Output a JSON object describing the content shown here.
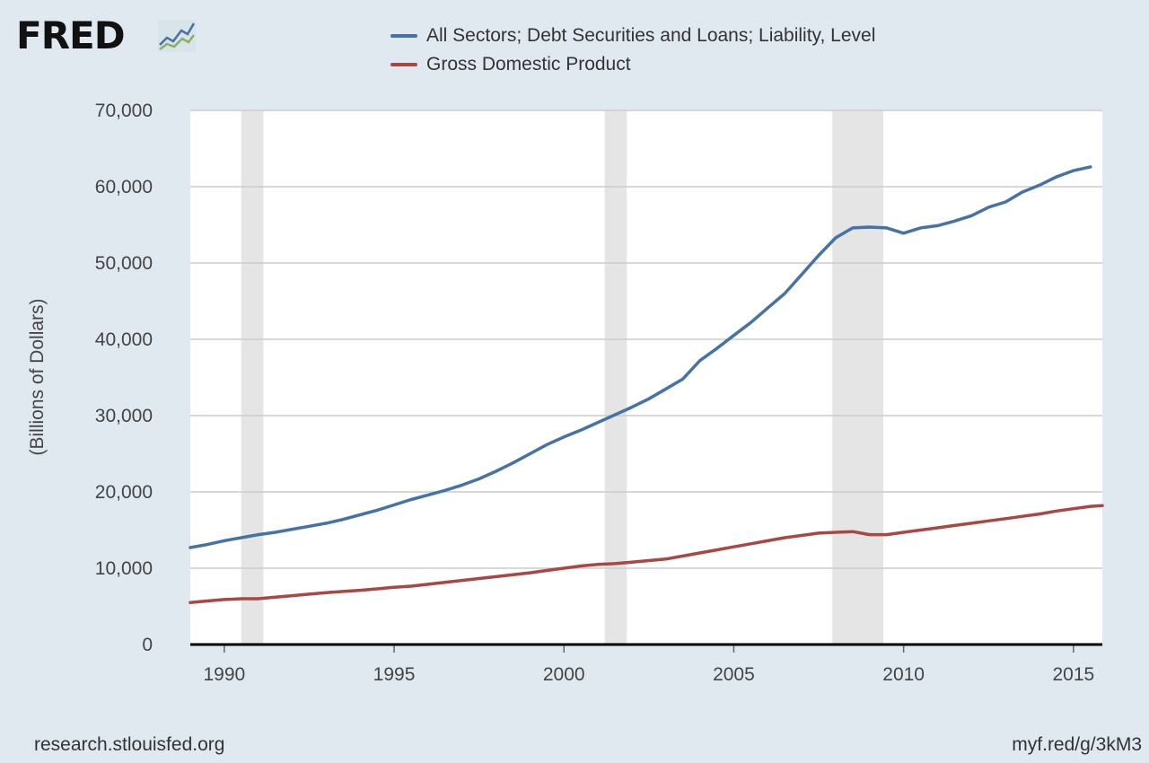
{
  "header": {
    "logo_text": "FRED",
    "logo_icon": "chart-line-icon"
  },
  "footer": {
    "source": "research.stlouisfed.org",
    "short_link": "myf.red/g/3kM3"
  },
  "chart_data": {
    "type": "line",
    "ylabel": "(Billions of Dollars)",
    "xlim": [
      1989.0,
      2015.85
    ],
    "ylim": [
      0,
      70000
    ],
    "x_ticks": [
      "1990",
      "1995",
      "2000",
      "2005",
      "2010",
      "2015"
    ],
    "x_tick_values": [
      1990,
      1995,
      2000,
      2005,
      2010,
      2015
    ],
    "y_ticks": [
      "0",
      "10,000",
      "20,000",
      "30,000",
      "40,000",
      "50,000",
      "60,000",
      "70,000"
    ],
    "y_tick_values": [
      0,
      10000,
      20000,
      30000,
      40000,
      50000,
      60000,
      70000
    ],
    "grid": true,
    "legend_position": "top",
    "recessions": [
      [
        1990.5,
        1991.15
      ],
      [
        2001.2,
        2001.85
      ],
      [
        2007.9,
        2009.4
      ]
    ],
    "series": [
      {
        "name": "All Sectors; Debt Securities and Loans; Liability, Level",
        "color": "#4572a7",
        "points": [
          [
            1989.0,
            12700
          ],
          [
            1989.5,
            13100
          ],
          [
            1990.0,
            13600
          ],
          [
            1990.5,
            14000
          ],
          [
            1991.0,
            14400
          ],
          [
            1991.5,
            14700
          ],
          [
            1992.0,
            15100
          ],
          [
            1992.5,
            15500
          ],
          [
            1993.0,
            15900
          ],
          [
            1993.5,
            16400
          ],
          [
            1994.0,
            17000
          ],
          [
            1994.5,
            17600
          ],
          [
            1995.0,
            18300
          ],
          [
            1995.5,
            19000
          ],
          [
            1996.0,
            19600
          ],
          [
            1996.5,
            20200
          ],
          [
            1997.0,
            20900
          ],
          [
            1997.5,
            21700
          ],
          [
            1998.0,
            22700
          ],
          [
            1998.5,
            23800
          ],
          [
            1999.0,
            25000
          ],
          [
            1999.5,
            26200
          ],
          [
            2000.0,
            27200
          ],
          [
            2000.5,
            28100
          ],
          [
            2001.0,
            29100
          ],
          [
            2001.5,
            30100
          ],
          [
            2002.0,
            31100
          ],
          [
            2002.5,
            32200
          ],
          [
            2003.0,
            33500
          ],
          [
            2003.5,
            34800
          ],
          [
            2004.0,
            37200
          ],
          [
            2004.5,
            38800
          ],
          [
            2005.0,
            40500
          ],
          [
            2005.5,
            42200
          ],
          [
            2006.0,
            44100
          ],
          [
            2006.5,
            46000
          ],
          [
            2007.0,
            48500
          ],
          [
            2007.5,
            51000
          ],
          [
            2008.0,
            53300
          ],
          [
            2008.5,
            54600
          ],
          [
            2009.0,
            54700
          ],
          [
            2009.5,
            54600
          ],
          [
            2010.0,
            53900
          ],
          [
            2010.5,
            54600
          ],
          [
            2011.0,
            54900
          ],
          [
            2011.5,
            55500
          ],
          [
            2012.0,
            56200
          ],
          [
            2012.5,
            57300
          ],
          [
            2013.0,
            58000
          ],
          [
            2013.5,
            59300
          ],
          [
            2014.0,
            60200
          ],
          [
            2014.5,
            61300
          ],
          [
            2015.0,
            62100
          ],
          [
            2015.5,
            62600
          ]
        ]
      },
      {
        "name": "Gross Domestic Product",
        "color": "#aa4643",
        "points": [
          [
            1989.0,
            5500
          ],
          [
            1989.5,
            5700
          ],
          [
            1990.0,
            5900
          ],
          [
            1990.5,
            6000
          ],
          [
            1991.0,
            6000
          ],
          [
            1991.5,
            6200
          ],
          [
            1992.0,
            6400
          ],
          [
            1992.5,
            6600
          ],
          [
            1993.0,
            6800
          ],
          [
            1993.5,
            6950
          ],
          [
            1994.0,
            7100
          ],
          [
            1994.5,
            7300
          ],
          [
            1995.0,
            7500
          ],
          [
            1995.5,
            7650
          ],
          [
            1996.0,
            7900
          ],
          [
            1996.5,
            8150
          ],
          [
            1997.0,
            8400
          ],
          [
            1997.5,
            8650
          ],
          [
            1998.0,
            8900
          ],
          [
            1998.5,
            9150
          ],
          [
            1999.0,
            9400
          ],
          [
            1999.5,
            9700
          ],
          [
            2000.0,
            10000
          ],
          [
            2000.5,
            10300
          ],
          [
            2001.0,
            10500
          ],
          [
            2001.5,
            10600
          ],
          [
            2002.0,
            10800
          ],
          [
            2002.5,
            11000
          ],
          [
            2003.0,
            11200
          ],
          [
            2003.5,
            11600
          ],
          [
            2004.0,
            12000
          ],
          [
            2004.5,
            12400
          ],
          [
            2005.0,
            12800
          ],
          [
            2005.5,
            13200
          ],
          [
            2006.0,
            13600
          ],
          [
            2006.5,
            14000
          ],
          [
            2007.0,
            14300
          ],
          [
            2007.5,
            14600
          ],
          [
            2008.0,
            14700
          ],
          [
            2008.5,
            14800
          ],
          [
            2009.0,
            14400
          ],
          [
            2009.5,
            14400
          ],
          [
            2010.0,
            14700
          ],
          [
            2010.5,
            15000
          ],
          [
            2011.0,
            15300
          ],
          [
            2011.5,
            15600
          ],
          [
            2012.0,
            15900
          ],
          [
            2012.5,
            16200
          ],
          [
            2013.0,
            16500
          ],
          [
            2013.5,
            16800
          ],
          [
            2014.0,
            17100
          ],
          [
            2014.5,
            17500
          ],
          [
            2015.0,
            17800
          ],
          [
            2015.5,
            18100
          ],
          [
            2015.85,
            18200
          ]
        ]
      }
    ]
  }
}
